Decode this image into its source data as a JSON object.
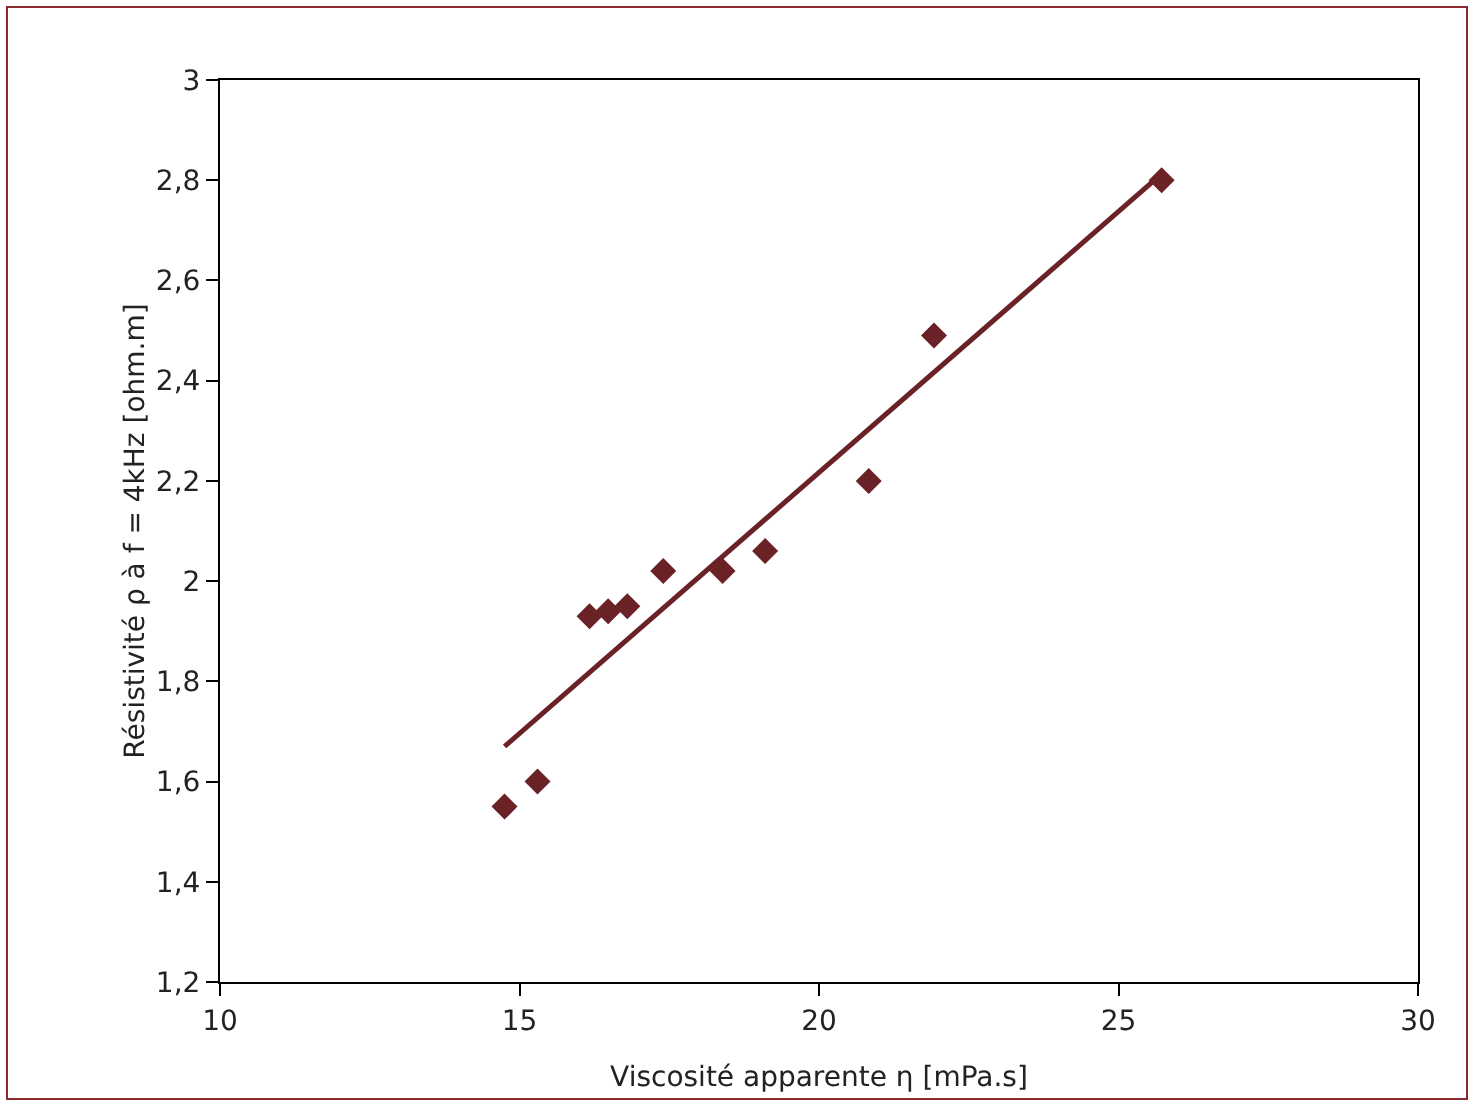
{
  "chart_data": {
    "type": "scatter",
    "xlabel": "Viscosité apparente η [mPa.s]",
    "ylabel": "Résistivité ρ à f = 4kHz [ohm.m]",
    "x": [
      14.75,
      15.3,
      16.17,
      16.48,
      16.8,
      17.4,
      18.39,
      19.1,
      20.83,
      21.92,
      25.72
    ],
    "series": [
      {
        "type": "scatter",
        "color": "#6b2226",
        "marker": "diamond",
        "values": [
          1.55,
          1.6,
          1.93,
          1.94,
          1.95,
          2.02,
          2.02,
          2.06,
          2.2,
          2.49,
          2.8
        ]
      },
      {
        "type": "line",
        "color": "#6b2226",
        "x": [
          14.75,
          25.6
        ],
        "values": [
          1.67,
          2.8
        ],
        "line_style": "solid",
        "marker": "none"
      }
    ],
    "xlim": [
      10,
      30
    ],
    "xticks": [
      10,
      15,
      20,
      25,
      30
    ],
    "ylim": [
      1.2,
      3
    ],
    "yticks": [
      {
        "value": 1.2,
        "label": "1,2"
      },
      {
        "value": 1.4,
        "label": "1,4"
      },
      {
        "value": 1.6,
        "label": "1,6"
      },
      {
        "value": 1.8,
        "label": "1,8"
      },
      2,
      {
        "value": 2.2,
        "label": "2,2"
      },
      {
        "value": 2.4,
        "label": "2,4"
      },
      {
        "value": 2.6,
        "label": "2,6"
      },
      {
        "value": 2.8,
        "label": "2,8"
      },
      3
    ],
    "grid": false
  }
}
